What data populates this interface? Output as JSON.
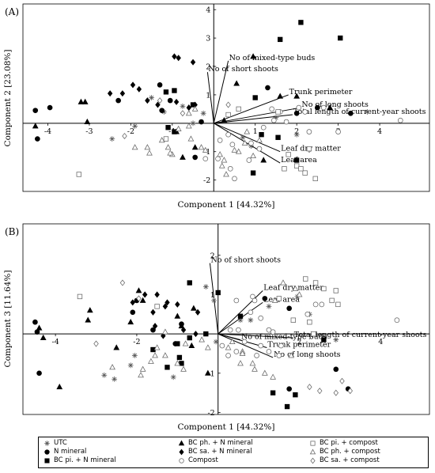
{
  "legend": [
    {
      "label": "UTC",
      "marker": "star"
    },
    {
      "label": "N mineral",
      "marker": "circle-filled"
    },
    {
      "label": "BC pi. + N mineral",
      "marker": "square-filled"
    },
    {
      "label": "BC ph. + N mineral",
      "marker": "triangle-filled"
    },
    {
      "label": "BC sa. + N mineral",
      "marker": "diamond-filled"
    },
    {
      "label": "Compost",
      "marker": "circle-open"
    },
    {
      "label": "BC pi. + compost",
      "marker": "square-open"
    },
    {
      "label": "BC ph. + compost",
      "marker": "triangle-open"
    },
    {
      "label": "BC sa. + compost",
      "marker": "diamond-open"
    }
  ],
  "chart_data": [
    {
      "type": "scatter",
      "panel_label": "(A)",
      "xlabel": "Component 1 [44.32%]",
      "ylabel": "Component 2 [23.08%]",
      "xlim": [
        -4.6,
        5.2
      ],
      "ylim": [
        -2.4,
        4.2
      ],
      "xticks": [
        -4,
        -3,
        -2,
        -1,
        1,
        2,
        3,
        4
      ],
      "yticks": [
        -2,
        -1,
        1,
        2,
        3,
        4
      ],
      "vectors": [
        {
          "name": "No of mixed-type buds",
          "x": 0.35,
          "y": 2.2
        },
        {
          "name": "No of short shoots",
          "x": -0.15,
          "y": 1.8
        },
        {
          "name": "Trunk perimeter",
          "x": 1.8,
          "y": 1.0
        },
        {
          "name": "No of long shoots",
          "x": 2.1,
          "y": 0.55
        },
        {
          "name": "Total length of current-year shoots",
          "x": 1.9,
          "y": 0.3
        },
        {
          "name": "Leaf dry matter",
          "x": 1.6,
          "y": -1.0
        },
        {
          "name": "Leaf area",
          "x": 1.6,
          "y": -1.4
        }
      ],
      "series": [
        {
          "marker": "star",
          "x": [
            -1.9,
            -1.5,
            -1.2,
            -0.75,
            -0.5,
            -0.25,
            0.7,
            0.9,
            1.5,
            2.0,
            3.7,
            -2.45
          ],
          "y": [
            -0.1,
            0.9,
            0.4,
            0.6,
            0.0,
            0.35,
            -0.5,
            -0.8,
            0.2,
            -0.4,
            0.4,
            -0.55
          ]
        },
        {
          "marker": "circle-filled",
          "x": [
            -4.3,
            -3.95,
            -4.25,
            -2.3,
            -1.3,
            -1.25,
            -1.05,
            -0.3,
            -0.45,
            1.3,
            2.0,
            2.5,
            3.3
          ],
          "y": [
            0.45,
            0.55,
            -0.55,
            0.8,
            1.35,
            0.45,
            0.8,
            0.05,
            -1.2,
            1.25,
            0.35,
            0.55,
            0.35
          ]
        },
        {
          "marker": "square-filled",
          "x": [
            1.6,
            2.1,
            3.05,
            1.0,
            0.95,
            -0.5,
            -1.15,
            -0.95,
            2.0,
            -0.95,
            1.15,
            1.55,
            -1.1
          ],
          "y": [
            2.95,
            3.55,
            3.0,
            0.9,
            -1.75,
            0.65,
            1.1,
            1.15,
            -1.3,
            -0.3,
            -0.4,
            -0.5,
            -0.15
          ]
        },
        {
          "marker": "triangle-filled",
          "x": [
            -3.1,
            -4.3,
            -3.2,
            -3.05,
            0.55,
            2.0,
            0.95,
            -0.45,
            -0.75,
            2.8,
            1.2,
            0.25,
            -0.9,
            1.6
          ],
          "y": [
            0.75,
            -0.1,
            0.75,
            0.05,
            1.4,
            0.95,
            2.35,
            -0.85,
            -1.2,
            0.55,
            -1.3,
            0.1,
            -0.3,
            0.95
          ]
        },
        {
          "marker": "diamond-filled",
          "x": [
            -0.95,
            -0.85,
            -0.5,
            -1.8,
            -2.5,
            -2.2,
            -1.95,
            -1.6,
            -0.6,
            -1.35,
            -0.9,
            -0.45
          ],
          "y": [
            2.35,
            2.3,
            2.15,
            1.2,
            1.05,
            1.05,
            1.35,
            0.8,
            0.55,
            0.65,
            0.75,
            0.65
          ]
        },
        {
          "marker": "circle-open",
          "x": [
            1.4,
            1.6,
            2.05,
            2.2,
            2.3,
            3.0,
            4.5,
            0.1,
            0.4,
            -0.2,
            0.5,
            0.9,
            1.1,
            0.85,
            1.45,
            1.75,
            2.65,
            0.45,
            0.15,
            0.35,
            1.2
          ],
          "y": [
            0.5,
            0.4,
            0.55,
            0.4,
            -0.3,
            -0.3,
            0.1,
            -1.25,
            -1.6,
            -1.25,
            -1.95,
            -0.7,
            -0.9,
            -1.3,
            0.1,
            0.05,
            0.55,
            -0.75,
            -0.6,
            -0.4,
            -0.15
          ]
        },
        {
          "marker": "square-open",
          "x": [
            -3.25,
            -1.15,
            0.35,
            0.6,
            1.55,
            1.7,
            2.2,
            2.3,
            2.45,
            2.0,
            2.1,
            1.8
          ],
          "y": [
            -1.8,
            -0.55,
            0.3,
            0.5,
            0.4,
            -1.6,
            -1.75,
            -0.9,
            -1.95,
            -1.5,
            -1.6,
            -1.1
          ]
        },
        {
          "marker": "triangle-open",
          "x": [
            -1.9,
            -1.6,
            -1.55,
            -1.25,
            -1.0,
            -0.85,
            -0.6,
            -0.45,
            -0.2,
            -0.55,
            0.15,
            0.75,
            0.6,
            0.25,
            0.2,
            -1.05,
            -0.6,
            -0.3,
            0.8,
            0.5,
            1.1,
            0.95,
            -1.1,
            0.3
          ],
          "y": [
            -0.85,
            -0.85,
            -1.05,
            -0.6,
            -1.1,
            -0.2,
            0.35,
            0.5,
            -0.95,
            -0.55,
            -1.1,
            -0.7,
            -1.0,
            -1.3,
            -1.5,
            -1.05,
            -0.1,
            -0.85,
            -0.3,
            -0.95,
            -0.6,
            -1.15,
            -0.85,
            -1.8
          ]
        },
        {
          "marker": "diamond-open",
          "x": [
            -2.15,
            -1.3,
            -0.75,
            0.35
          ],
          "y": [
            -0.45,
            0.8,
            0.35,
            0.65
          ]
        }
      ]
    },
    {
      "type": "scatter",
      "panel_label": "(B)",
      "xlabel": "Component 1 [44.32%]",
      "ylabel": "Component 3 [11.64%]",
      "xlim": [
        -4.8,
        5.2
      ],
      "ylim": [
        -2.05,
        2.8
      ],
      "xticks": [
        -4,
        -2,
        2,
        4
      ],
      "yticks": [
        -2,
        -1,
        1,
        2
      ],
      "vectors": [
        {
          "name": "No of short shoots",
          "x": -0.2,
          "y": 1.8
        },
        {
          "name": "Leaf dry matter",
          "x": 1.1,
          "y": 1.1
        },
        {
          "name": "Leaf area",
          "x": 1.1,
          "y": 0.8
        },
        {
          "name": "Total length of current-year shoots",
          "x": 1.85,
          "y": -0.1
        },
        {
          "name": "No of mixed-type buds",
          "x": 0.55,
          "y": -0.15
        },
        {
          "name": "Trunk perimeter",
          "x": 1.2,
          "y": -0.35
        },
        {
          "name": "No of long shoots",
          "x": 1.35,
          "y": -0.6
        }
      ],
      "series": [
        {
          "marker": "star",
          "x": [
            -0.3,
            -0.1,
            -2.55,
            -2.8,
            -2.15,
            -2.05,
            -1.1,
            0.55,
            0.8,
            1.25,
            1.95,
            2.25,
            2.9,
            -0.05
          ],
          "y": [
            1.2,
            0.85,
            -1.15,
            -1.05,
            -0.8,
            -0.55,
            -1.1,
            0.35,
            0.35,
            0.7,
            0.95,
            0.5,
            -0.15,
            -0.2
          ]
        },
        {
          "marker": "circle-filled",
          "x": [
            -4.5,
            -4.45,
            -4.4,
            -2.1,
            -2.0,
            -1.6,
            -1.05,
            -0.9,
            1.15,
            1.75,
            1.75,
            3.2,
            2.9
          ],
          "y": [
            0.3,
            0.05,
            -1.0,
            0.55,
            0.85,
            0.1,
            -0.25,
            0.25,
            0.9,
            0.65,
            -1.4,
            -1.4,
            -0.9
          ]
        },
        {
          "marker": "square-filled",
          "x": [
            1.7,
            1.9,
            1.35,
            -0.7,
            -0.95,
            -1.6,
            -1.0,
            -0.9,
            -1.25,
            2.6,
            0.55,
            -0.7,
            0.0,
            -0.3
          ],
          "y": [
            -1.85,
            -1.55,
            -1.5,
            -0.1,
            -0.6,
            -0.4,
            -0.25,
            -0.75,
            -0.85,
            -0.15,
            0.45,
            1.3,
            1.05,
            0.0
          ]
        },
        {
          "marker": "triangle-filled",
          "x": [
            -4.4,
            -4.3,
            -3.15,
            -3.2,
            -2.15,
            -1.85,
            -1.95,
            -0.9,
            -0.6,
            -0.25,
            -1.0,
            -0.65,
            -3.9,
            -2.5
          ],
          "y": [
            0.15,
            -0.1,
            0.6,
            0.35,
            0.3,
            0.85,
            1.1,
            0.2,
            0.65,
            -1.0,
            0.45,
            -0.3,
            -1.35,
            -0.35
          ]
        },
        {
          "marker": "diamond-filled",
          "x": [
            -1.8,
            -2.1,
            -1.6,
            -1.25,
            -1.0,
            -1.5,
            -0.5,
            -1.55,
            -1.3,
            -0.85,
            -0.55,
            -1.35
          ],
          "y": [
            1.0,
            0.8,
            0.55,
            0.8,
            0.75,
            1.0,
            0.55,
            0.2,
            0.7,
            0.1,
            0.0,
            -0.05
          ]
        },
        {
          "marker": "circle-open",
          "x": [
            0.85,
            0.9,
            1.05,
            0.5,
            1.25,
            1.35,
            2.2,
            2.4,
            2.55,
            4.4,
            0.45,
            0.25,
            0.65,
            1.05,
            0.95,
            1.25,
            1.5,
            1.55,
            0.3,
            0.45,
            0.8,
            0.1
          ],
          "y": [
            0.95,
            0.85,
            0.4,
            0.1,
            0.1,
            0.05,
            0.5,
            0.75,
            0.75,
            0.35,
            -0.45,
            -0.55,
            -0.2,
            -0.3,
            -0.55,
            -0.45,
            -0.55,
            -0.3,
            0.1,
            0.85,
            0.55,
            -0.3
          ]
        },
        {
          "marker": "square-open",
          "x": [
            -3.4,
            -1.5,
            1.5,
            1.85,
            2.15,
            2.4,
            2.6,
            2.8,
            2.9,
            2.95,
            2.35,
            2.25
          ],
          "y": [
            0.95,
            0.7,
            0.9,
            0.35,
            1.4,
            1.3,
            1.15,
            0.85,
            1.1,
            0.75,
            0.0,
            0.3
          ]
        },
        {
          "marker": "triangle-open",
          "x": [
            -1.65,
            -1.5,
            -1.55,
            -1.3,
            -1.0,
            -0.85,
            -0.4,
            -0.25,
            0.6,
            0.55,
            0.9,
            1.15,
            1.35,
            1.8,
            2.0,
            1.9,
            1.6,
            1.4,
            0.35,
            0.25,
            0.85,
            0.6,
            -2.6,
            -1.85,
            -1.9,
            -1.3,
            -0.8
          ],
          "y": [
            -0.7,
            -0.35,
            -0.55,
            -0.55,
            -0.75,
            -0.9,
            -0.15,
            -0.35,
            -0.45,
            -0.75,
            -0.9,
            -1.0,
            -1.1,
            -0.55,
            1.0,
            1.15,
            1.3,
            0.85,
            -0.2,
            -0.35,
            -0.75,
            -0.5,
            -0.85,
            -0.9,
            -1.05,
            0.05,
            -0.25
          ]
        },
        {
          "marker": "diamond-open",
          "x": [
            -3.0,
            -2.35,
            -1.95,
            2.25,
            2.5,
            2.9,
            3.25,
            3.05
          ],
          "y": [
            -0.25,
            1.3,
            0.9,
            -1.35,
            -1.45,
            -1.5,
            -1.45,
            -1.2
          ]
        }
      ]
    }
  ]
}
